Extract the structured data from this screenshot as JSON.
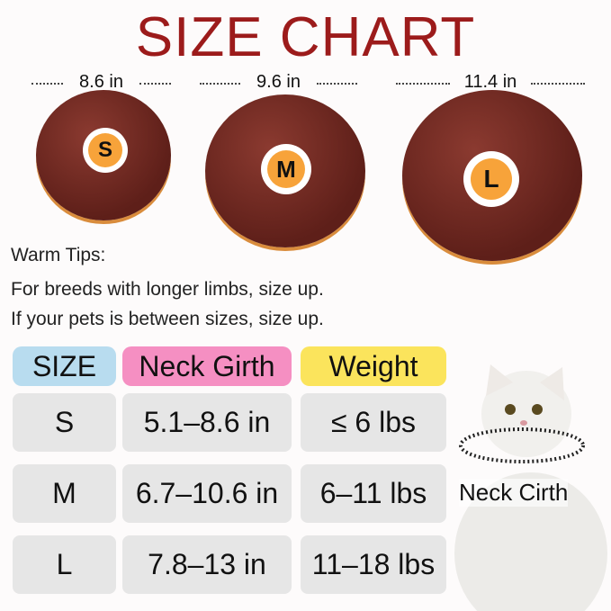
{
  "title": "SIZE CHART",
  "measurements": [
    "8.6 in",
    "9.6 in",
    "11.4 in"
  ],
  "donuts": [
    {
      "label": "S"
    },
    {
      "label": "M"
    },
    {
      "label": "L"
    }
  ],
  "tips": {
    "heading": "Warm Tips:",
    "lines": [
      "For breeds with longer limbs, size up.",
      "If your pets is between sizes, size up."
    ]
  },
  "table": {
    "headers": [
      "SIZE",
      "Neck Girth",
      "Weight"
    ],
    "header_colors": [
      "#b8dcef",
      "#f58fc2",
      "#fbe45c"
    ],
    "rows": [
      [
        "S",
        "5.1–8.6 in",
        "≤ 6 lbs"
      ],
      [
        "M",
        "6.7–10.6 in",
        "6–11 lbs"
      ],
      [
        "L",
        "7.8–13 in",
        "11–18 lbs"
      ]
    ]
  },
  "cat": {
    "label": "Neck Cirth"
  },
  "colors": {
    "title": "#9c1b1b",
    "donut": "#6e261f",
    "badge": "#f7a33a"
  }
}
